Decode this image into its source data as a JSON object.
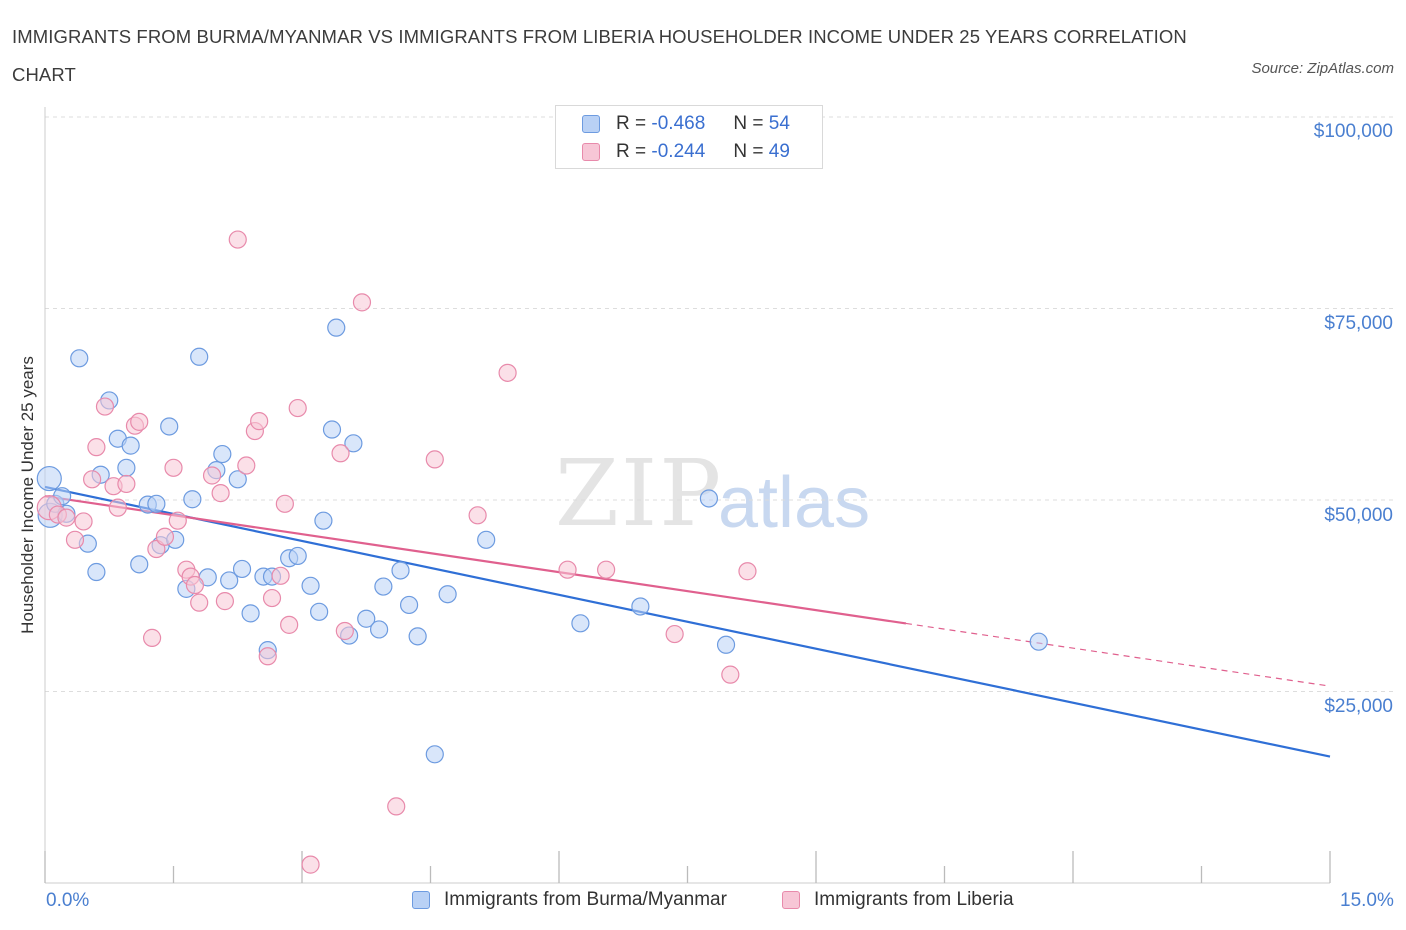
{
  "title": "IMMIGRANTS FROM BURMA/MYANMAR VS IMMIGRANTS FROM LIBERIA HOUSEHOLDER INCOME UNDER 25 YEARS CORRELATION CHART",
  "source": "Source: ZipAtlas.com",
  "watermark": {
    "zip": "ZIP",
    "atlas": "atlas"
  },
  "legend": {
    "burma": {
      "r_label": "R =",
      "r_value": "-0.468",
      "n_label": "N =",
      "n_value": "54"
    },
    "liberia": {
      "r_label": "R =",
      "r_value": "-0.244",
      "n_label": "N =",
      "n_value": "49"
    }
  },
  "colors": {
    "burma_fill": "#b9d1f5",
    "burma_stroke": "#6d9be0",
    "burma_line": "#2f6fd6",
    "liberia_fill": "#f7c6d6",
    "liberia_stroke": "#e88aab",
    "liberia_line": "#e0608e",
    "tick_text": "#4a7fd0",
    "grid": "#dddddd"
  },
  "chart_data": {
    "type": "scatter",
    "title": "IMMIGRANTS FROM BURMA/MYANMAR VS IMMIGRANTS FROM LIBERIA HOUSEHOLDER INCOME UNDER 25 YEARS CORRELATION CHART",
    "xlabel": "",
    "ylabel": "Householder Income Under 25 years",
    "xlim": [
      0,
      15
    ],
    "ylim": [
      0,
      100000
    ],
    "x_tick_labels": [
      "0.0%",
      "15.0%"
    ],
    "y_ticks": [
      25000,
      50000,
      75000,
      100000
    ],
    "y_tick_labels": [
      "$25,000",
      "$50,000",
      "$75,000",
      "$100,000"
    ],
    "grid": true,
    "legend_position": "top-center",
    "series": [
      {
        "name": "Immigrants from Burma/Myanmar",
        "trend": {
          "x": [
            0.0,
            15.0
          ],
          "y": [
            51700,
            16500
          ],
          "dashed_from": null
        },
        "points": [
          {
            "x": 0.05,
            "y": 52800,
            "big": true
          },
          {
            "x": 0.06,
            "y": 48000,
            "big": true
          },
          {
            "x": 0.12,
            "y": 49500
          },
          {
            "x": 0.2,
            "y": 50500
          },
          {
            "x": 0.25,
            "y": 48200
          },
          {
            "x": 0.4,
            "y": 68500
          },
          {
            "x": 0.5,
            "y": 44300
          },
          {
            "x": 0.6,
            "y": 40600
          },
          {
            "x": 0.65,
            "y": 53300
          },
          {
            "x": 0.75,
            "y": 63000
          },
          {
            "x": 0.85,
            "y": 58000
          },
          {
            "x": 0.95,
            "y": 54200
          },
          {
            "x": 1.0,
            "y": 57100
          },
          {
            "x": 1.1,
            "y": 41600
          },
          {
            "x": 1.2,
            "y": 49400
          },
          {
            "x": 1.3,
            "y": 49500
          },
          {
            "x": 1.35,
            "y": 44100
          },
          {
            "x": 1.45,
            "y": 59600
          },
          {
            "x": 1.52,
            "y": 44800
          },
          {
            "x": 1.65,
            "y": 38400
          },
          {
            "x": 1.72,
            "y": 50100
          },
          {
            "x": 1.8,
            "y": 68700
          },
          {
            "x": 1.9,
            "y": 39900
          },
          {
            "x": 2.0,
            "y": 53900
          },
          {
            "x": 2.07,
            "y": 56000
          },
          {
            "x": 2.15,
            "y": 39500
          },
          {
            "x": 2.25,
            "y": 52700
          },
          {
            "x": 2.3,
            "y": 41000
          },
          {
            "x": 2.4,
            "y": 35200
          },
          {
            "x": 2.55,
            "y": 40000
          },
          {
            "x": 2.6,
            "y": 30400
          },
          {
            "x": 2.65,
            "y": 40000
          },
          {
            "x": 2.85,
            "y": 42400
          },
          {
            "x": 2.95,
            "y": 42700
          },
          {
            "x": 3.1,
            "y": 38800
          },
          {
            "x": 3.2,
            "y": 35400
          },
          {
            "x": 3.25,
            "y": 47300
          },
          {
            "x": 3.35,
            "y": 59200
          },
          {
            "x": 3.4,
            "y": 72500
          },
          {
            "x": 3.55,
            "y": 32300
          },
          {
            "x": 3.6,
            "y": 57400
          },
          {
            "x": 3.75,
            "y": 34500
          },
          {
            "x": 3.9,
            "y": 33100
          },
          {
            "x": 3.95,
            "y": 38700
          },
          {
            "x": 4.15,
            "y": 40800
          },
          {
            "x": 4.25,
            "y": 36300
          },
          {
            "x": 4.35,
            "y": 32200
          },
          {
            "x": 4.55,
            "y": 16800
          },
          {
            "x": 4.7,
            "y": 37700
          },
          {
            "x": 5.15,
            "y": 44800
          },
          {
            "x": 6.25,
            "y": 33900
          },
          {
            "x": 6.95,
            "y": 36100
          },
          {
            "x": 7.75,
            "y": 50200
          },
          {
            "x": 7.95,
            "y": 31100
          },
          {
            "x": 11.6,
            "y": 31500
          }
        ]
      },
      {
        "name": "Immigrants from Liberia",
        "trend": {
          "x": [
            0.0,
            15.0
          ],
          "y": [
            50500,
            25700
          ],
          "dashed_from": 10.05
        },
        "points": [
          {
            "x": 0.05,
            "y": 49000,
            "big": true
          },
          {
            "x": 0.15,
            "y": 48100
          },
          {
            "x": 0.25,
            "y": 47700
          },
          {
            "x": 0.35,
            "y": 44800
          },
          {
            "x": 0.45,
            "y": 47200
          },
          {
            "x": 0.55,
            "y": 52700
          },
          {
            "x": 0.6,
            "y": 56900
          },
          {
            "x": 0.7,
            "y": 62200
          },
          {
            "x": 0.8,
            "y": 51800
          },
          {
            "x": 0.85,
            "y": 49000
          },
          {
            "x": 0.95,
            "y": 52100
          },
          {
            "x": 1.05,
            "y": 59700
          },
          {
            "x": 1.1,
            "y": 60200
          },
          {
            "x": 1.25,
            "y": 32000
          },
          {
            "x": 1.3,
            "y": 43600
          },
          {
            "x": 1.4,
            "y": 45200
          },
          {
            "x": 1.5,
            "y": 54200
          },
          {
            "x": 1.55,
            "y": 47300
          },
          {
            "x": 1.65,
            "y": 40900
          },
          {
            "x": 1.7,
            "y": 40000
          },
          {
            "x": 1.75,
            "y": 38900
          },
          {
            "x": 1.8,
            "y": 36600
          },
          {
            "x": 1.95,
            "y": 53200
          },
          {
            "x": 2.05,
            "y": 50900
          },
          {
            "x": 2.1,
            "y": 36800
          },
          {
            "x": 2.25,
            "y": 84000
          },
          {
            "x": 2.35,
            "y": 54500
          },
          {
            "x": 2.45,
            "y": 59000
          },
          {
            "x": 2.5,
            "y": 60300
          },
          {
            "x": 2.6,
            "y": 29600
          },
          {
            "x": 2.65,
            "y": 37200
          },
          {
            "x": 2.75,
            "y": 40100
          },
          {
            "x": 2.8,
            "y": 49500
          },
          {
            "x": 2.85,
            "y": 33700
          },
          {
            "x": 2.95,
            "y": 62000
          },
          {
            "x": 3.1,
            "y": 2400
          },
          {
            "x": 3.45,
            "y": 56100
          },
          {
            "x": 3.5,
            "y": 32900
          },
          {
            "x": 3.7,
            "y": 75800
          },
          {
            "x": 4.1,
            "y": 10000
          },
          {
            "x": 4.55,
            "y": 55300
          },
          {
            "x": 5.05,
            "y": 48000
          },
          {
            "x": 5.4,
            "y": 66600
          },
          {
            "x": 6.1,
            "y": 40900
          },
          {
            "x": 6.55,
            "y": 40900
          },
          {
            "x": 7.35,
            "y": 32500
          },
          {
            "x": 8.0,
            "y": 27200
          },
          {
            "x": 8.2,
            "y": 40700
          }
        ]
      }
    ]
  },
  "bottom_legend": {
    "burma": "Immigrants from Burma/Myanmar",
    "liberia": "Immigrants from Liberia"
  }
}
